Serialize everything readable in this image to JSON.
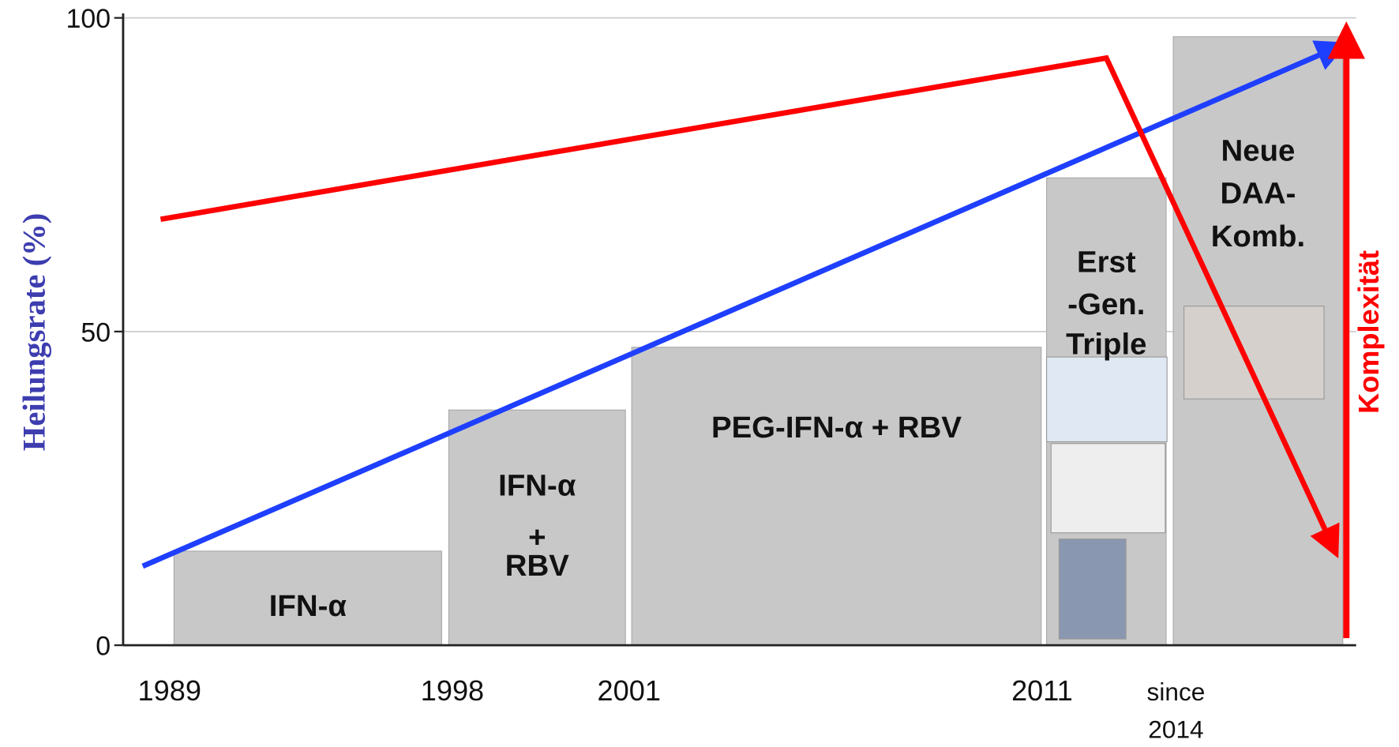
{
  "chart_data": {
    "type": "bar",
    "y_label": "Heilungsrate (%)",
    "right_label": "Komplexität",
    "categories": [
      [
        "IFN-α"
      ],
      [
        "IFN-α",
        "+",
        "RBV"
      ],
      [
        "PEG-IFN-α + RBV"
      ],
      [
        "Erst",
        "-Gen.",
        "Triple"
      ],
      [
        "Neue",
        "DAA-",
        "Komb."
      ]
    ],
    "values": [
      15,
      37.5,
      47.5,
      74.5,
      97
    ],
    "color": "#c8c8c8",
    "x_labels": [
      "1989",
      "1998",
      "2001",
      "2011",
      [
        "since",
        "2014"
      ]
    ],
    "ylim": [
      0,
      100
    ],
    "yticks": [
      0,
      50,
      100
    ],
    "grid": true,
    "trend_lines": [
      {
        "color": "#1f3fff",
        "values": [
          12.6,
          95.4
        ]
      },
      {
        "color": "#ff0000",
        "values": [
          67.9,
          93.6,
          15.4
        ]
      }
    ]
  }
}
